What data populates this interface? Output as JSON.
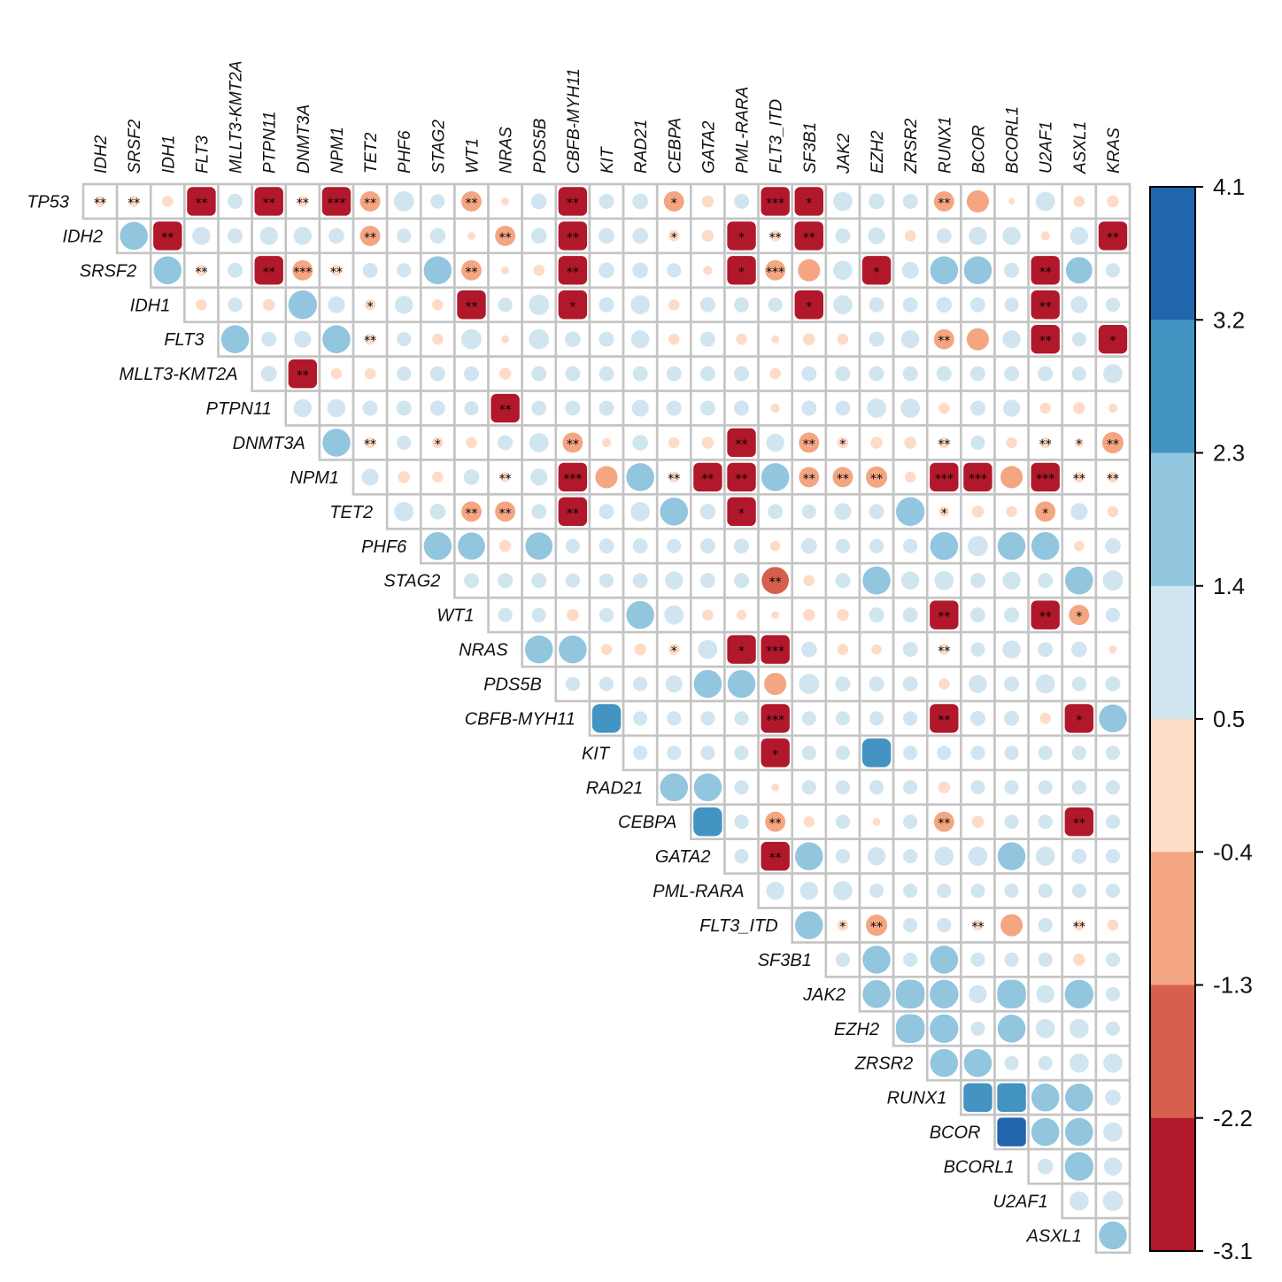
{
  "chart_data": {
    "type": "heatmap",
    "style": "corrplot-upper-circles",
    "grid": true,
    "legend": "right",
    "columns": [
      "IDH2",
      "SRSF2",
      "IDH1",
      "FLT3",
      "MLLT3-KMT2A",
      "PTPN11",
      "DNMT3A",
      "NPM1",
      "TET2",
      "PHF6",
      "STAG2",
      "WT1",
      "NRAS",
      "PDS5B",
      "CBFB-MYH11",
      "KIT",
      "RAD21",
      "CEBPA",
      "GATA2",
      "PML-RARA",
      "FLT3_ITD",
      "SF3B1",
      "JAK2",
      "EZH2",
      "ZRSR2",
      "RUNX1",
      "BCOR",
      "BCORL1",
      "U2AF1",
      "ASXL1",
      "KRAS"
    ],
    "rows": [
      {
        "name": "TP53",
        "values": [
          -0.3,
          -0.3,
          -0.3,
          -2.9,
          0.55,
          -2.9,
          -0.3,
          -2.9,
          -1.0,
          1.0,
          0.5,
          -1.0,
          -0.15,
          0.6,
          -2.9,
          0.55,
          0.6,
          -1.0,
          -0.35,
          0.55,
          -2.9,
          -2.9,
          0.9,
          0.6,
          0.55,
          -1.0,
          -1.2,
          -0.1,
          0.9,
          -0.3,
          -0.35
        ],
        "stars": [
          "**",
          "**",
          "",
          "**",
          "",
          "**",
          "**",
          "***",
          "**",
          "",
          "",
          "**",
          "",
          "",
          "**",
          "",
          "",
          "*",
          "",
          "",
          "***",
          "*",
          "",
          "",
          "",
          "**",
          "",
          "",
          "",
          "",
          ""
        ]
      },
      {
        "name": "IDH2",
        "values": [
          1.9,
          -2.9,
          0.8,
          0.55,
          0.8,
          0.8,
          0.6,
          -1.0,
          0.5,
          0.6,
          -0.15,
          -1.0,
          0.6,
          -2.9,
          0.6,
          0.6,
          -0.3,
          -0.35,
          -2.9,
          -0.3,
          -2.9,
          0.55,
          0.7,
          -0.3,
          0.55,
          0.8,
          0.8,
          -0.2,
          0.8,
          -2.9
        ],
        "stars": [
          "",
          "**",
          "",
          "",
          "",
          "",
          "",
          "**",
          "",
          "",
          "",
          "**",
          "",
          "**",
          "",
          "",
          "*",
          "",
          "*",
          "**",
          "**",
          "",
          "",
          "",
          "",
          "",
          "",
          "",
          "",
          "**"
        ]
      },
      {
        "name": "SRSF2",
        "values": [
          1.9,
          -0.3,
          0.55,
          -2.9,
          -1.0,
          -0.3,
          0.55,
          0.5,
          1.9,
          -1.0,
          -0.15,
          -0.3,
          -2.9,
          0.6,
          0.6,
          0.5,
          -0.2,
          -2.9,
          -1.0,
          -1.2,
          0.9,
          -2.9,
          0.7,
          1.9,
          1.9,
          0.55,
          -2.9,
          1.7,
          0.5
        ],
        "stars": [
          "",
          "**",
          "",
          "**",
          "***",
          "**",
          "",
          "",
          "",
          "**",
          "",
          "",
          "**",
          "",
          "",
          "",
          "",
          "*",
          "***",
          "",
          "",
          "*",
          "",
          "",
          "",
          "",
          "**",
          "",
          ""
        ]
      },
      {
        "name": "IDH1",
        "values": [
          -0.3,
          0.5,
          -0.35,
          2.0,
          0.7,
          -0.3,
          0.8,
          -0.3,
          -2.9,
          0.5,
          1.0,
          -2.9,
          0.55,
          0.9,
          -0.3,
          0.55,
          0.55,
          0.5,
          -2.9,
          0.9,
          0.55,
          0.55,
          0.6,
          0.55,
          0.5,
          -2.9,
          0.7,
          0.5
        ],
        "stars": [
          "",
          "",
          "",
          "",
          "",
          "*",
          "",
          "",
          "**",
          "",
          "",
          "*",
          "",
          "",
          "",
          "",
          "",
          "",
          "*",
          "",
          "",
          "",
          "",
          "",
          "",
          "**",
          "",
          ""
        ]
      },
      {
        "name": "FLT3",
        "values": [
          1.9,
          0.55,
          0.7,
          1.9,
          -0.3,
          0.5,
          -0.3,
          1.0,
          -0.15,
          1.0,
          0.6,
          0.55,
          0.8,
          -0.3,
          0.55,
          -0.3,
          -0.15,
          -0.35,
          -0.3,
          0.55,
          0.8,
          -1.0,
          -1.2,
          0.8,
          -2.9,
          0.5,
          -2.9
        ],
        "stars": [
          "",
          "",
          "",
          "",
          "**",
          "",
          "",
          "",
          "",
          "",
          "",
          "",
          "",
          "",
          "",
          "",
          "",
          "",
          "",
          "",
          "",
          "**",
          "",
          "",
          "**",
          "",
          "*"
        ]
      },
      {
        "name": "MLLT3-KMT2A",
        "values": [
          0.6,
          -2.9,
          -0.3,
          -0.3,
          0.5,
          0.55,
          0.55,
          -0.35,
          0.55,
          0.55,
          0.55,
          0.55,
          0.55,
          0.55,
          0.55,
          -0.3,
          0.55,
          0.55,
          0.55,
          0.55,
          0.55,
          0.55,
          0.55,
          0.55,
          0.5,
          0.9
        ],
        "stars": [
          "",
          "**",
          "",
          "",
          "",
          "",
          "",
          "",
          "",
          "",
          "",
          "",
          "",
          "",
          "",
          "",
          "",
          "",
          "",
          "",
          "",
          "",
          "",
          "",
          "",
          ""
        ]
      },
      {
        "name": "PTPN11",
        "values": [
          0.8,
          0.8,
          0.55,
          0.55,
          0.55,
          0.5,
          -2.9,
          0.55,
          0.55,
          0.55,
          0.7,
          0.55,
          0.55,
          0.55,
          -0.2,
          0.55,
          0.55,
          0.9,
          0.9,
          -0.3,
          0.55,
          0.7,
          -0.3,
          -0.35,
          -0.2
        ],
        "stars": [
          "",
          "",
          "",
          "",
          "",
          "",
          "**",
          "",
          "",
          "",
          "",
          "",
          "",
          "",
          "",
          "",
          "",
          "",
          "",
          "",
          "",
          "",
          "",
          "",
          ""
        ]
      },
      {
        "name": "DNMT3A",
        "values": [
          1.9,
          -0.3,
          0.5,
          -0.3,
          -0.3,
          0.55,
          0.9,
          -1.0,
          -0.2,
          0.6,
          -0.3,
          -0.35,
          -2.9,
          0.8,
          -1.0,
          -0.3,
          -0.35,
          -0.35,
          -0.3,
          0.5,
          -0.3,
          -0.3,
          -0.2,
          -1.1
        ],
        "stars": [
          "",
          "**",
          "",
          "*",
          "",
          "",
          "",
          "**",
          "",
          "",
          "",
          "",
          "**",
          "",
          "**",
          "*",
          "",
          "",
          "**",
          "",
          "",
          "**",
          "*",
          "**"
        ]
      },
      {
        "name": "NPM1",
        "values": [
          0.7,
          -0.35,
          -0.3,
          0.6,
          -0.25,
          0.7,
          -2.9,
          -1.2,
          1.9,
          -0.3,
          -2.9,
          -2.9,
          1.9,
          -1.0,
          -1.0,
          -1.1,
          -0.3,
          -2.9,
          -2.9,
          -1.2,
          -2.9,
          -0.3,
          -0.3
        ],
        "stars": [
          "",
          "",
          "",
          "",
          "**",
          "",
          "***",
          "",
          "",
          "**",
          "**",
          "**",
          "",
          "**",
          "**",
          "**",
          "",
          "***",
          "***",
          "",
          "***",
          "**",
          "**"
        ]
      },
      {
        "name": "TET2",
        "values": [
          0.9,
          0.6,
          -1.0,
          -1.0,
          0.55,
          -2.9,
          0.55,
          0.9,
          1.9,
          0.6,
          -2.9,
          0.55,
          0.5,
          0.7,
          0.55,
          2.0,
          -0.25,
          -0.35,
          -0.3,
          -1.0,
          0.7,
          -0.3
        ],
        "stars": [
          "",
          "",
          "**",
          "**",
          "",
          "**",
          "",
          "",
          "",
          "",
          "*",
          "",
          "",
          "",
          "",
          "",
          "*",
          "",
          "",
          "*",
          "",
          ""
        ]
      },
      {
        "name": "PHF6",
        "values": [
          1.9,
          1.8,
          -0.35,
          1.8,
          0.5,
          0.55,
          0.55,
          0.5,
          0.55,
          0.55,
          -0.25,
          0.6,
          0.5,
          0.5,
          0.5,
          1.9,
          1.0,
          1.9,
          1.9,
          -0.25,
          0.6
        ],
        "stars": [
          "",
          "",
          "",
          "",
          "",
          "",
          "",
          "",
          "",
          "",
          "",
          "",
          "",
          "",
          "",
          "",
          "",
          "",
          "",
          "",
          ""
        ]
      },
      {
        "name": "STAG2",
        "values": [
          0.55,
          0.55,
          0.55,
          0.5,
          0.5,
          0.55,
          0.8,
          0.55,
          0.55,
          -1.8,
          -0.3,
          0.55,
          1.9,
          0.8,
          0.9,
          0.55,
          0.8,
          0.55,
          1.9,
          1.0
        ],
        "stars": [
          "",
          "",
          "",
          "",
          "",
          "",
          "",
          "",
          "",
          "**",
          "",
          "",
          "",
          "",
          "",
          "",
          "",
          "",
          "",
          ""
        ]
      },
      {
        "name": "WT1",
        "values": [
          0.5,
          0.5,
          -0.35,
          0.5,
          1.9,
          0.9,
          -0.3,
          -0.25,
          -0.15,
          -0.35,
          -0.35,
          0.55,
          0.55,
          -2.9,
          0.55,
          0.55,
          -2.9,
          -1.0,
          0.5
        ],
        "stars": [
          "",
          "",
          "",
          "",
          "",
          "",
          "",
          "",
          "",
          "",
          "",
          "",
          "",
          "**",
          "",
          "",
          "**",
          "*",
          ""
        ]
      },
      {
        "name": "NRAS",
        "values": [
          1.9,
          1.9,
          -0.3,
          -0.35,
          -0.3,
          0.9,
          -2.9,
          -2.9,
          0.6,
          -0.3,
          -0.25,
          0.55,
          -0.3,
          0.5,
          0.8,
          0.55,
          0.6,
          -0.15
        ],
        "stars": [
          "",
          "",
          "",
          "",
          "*",
          "",
          "*",
          "***",
          "",
          "",
          "",
          "",
          "**",
          "",
          "",
          "",
          "",
          ""
        ]
      },
      {
        "name": "PDS5B",
        "values": [
          0.5,
          0.5,
          0.5,
          0.7,
          1.9,
          1.9,
          -1.2,
          1.0,
          0.55,
          0.55,
          0.55,
          -0.3,
          0.8,
          0.55,
          0.9,
          0.5,
          0.55
        ],
        "stars": [
          "",
          "",
          "",
          "",
          "",
          "",
          "",
          "",
          "",
          "",
          "",
          "",
          "",
          "",
          "",
          "",
          ""
        ]
      },
      {
        "name": "CBFB-MYH11",
        "values": [
          2.7,
          0.5,
          0.5,
          0.5,
          0.5,
          -2.9,
          0.5,
          0.5,
          0.5,
          0.5,
          -2.9,
          0.55,
          0.55,
          -0.3,
          -2.9,
          1.9
        ],
        "stars": [
          "",
          "",
          "",
          "",
          "",
          "***",
          "",
          "",
          "",
          "",
          "**",
          "",
          "",
          "",
          "*",
          ""
        ]
      },
      {
        "name": "KIT",
        "values": [
          0.5,
          0.5,
          0.5,
          0.5,
          -2.9,
          0.5,
          0.5,
          2.7,
          0.5,
          0.5,
          0.5,
          0.5,
          0.5,
          0.5,
          0.5
        ],
        "stars": [
          "",
          "",
          "",
          "",
          "*",
          "",
          "",
          "",
          "",
          "",
          "",
          "",
          "",
          "",
          ""
        ]
      },
      {
        "name": "RAD21",
        "values": [
          1.9,
          1.9,
          0.5,
          -0.15,
          0.5,
          0.5,
          0.5,
          0.5,
          -0.35,
          0.5,
          0.5,
          0.5,
          0.5,
          0.5
        ],
        "stars": [
          "",
          "",
          "",
          "",
          "",
          "",
          "",
          "",
          "",
          "",
          "",
          "",
          "",
          ""
        ]
      },
      {
        "name": "CEBPA",
        "values": [
          2.7,
          0.5,
          -1.0,
          -0.3,
          0.5,
          -0.15,
          0.5,
          -1.0,
          -0.35,
          0.5,
          0.5,
          -2.9,
          0.5
        ],
        "stars": [
          "",
          "",
          "**",
          "",
          "",
          "",
          "",
          "**",
          "",
          "",
          "",
          "**",
          ""
        ]
      },
      {
        "name": "GATA2",
        "values": [
          0.5,
          -2.9,
          1.9,
          0.5,
          0.8,
          0.5,
          0.9,
          0.9,
          1.9,
          0.9,
          0.55,
          0.5
        ],
        "stars": [
          "",
          "**",
          "",
          "",
          "",
          "",
          "",
          "",
          "",
          "",
          "",
          ""
        ]
      },
      {
        "name": "PML-RARA",
        "values": [
          0.8,
          0.8,
          0.9,
          0.5,
          0.5,
          0.5,
          0.5,
          0.5,
          0.5,
          0.5,
          0.5
        ],
        "stars": [
          "",
          "",
          "",
          "",
          "",
          "",
          "",
          "",
          "",
          "",
          ""
        ]
      },
      {
        "name": "FLT3_ITD",
        "values": [
          1.9,
          -0.3,
          -1.1,
          0.5,
          0.5,
          -0.3,
          -1.2,
          0.5,
          -0.3,
          -0.3
        ],
        "stars": [
          "",
          "*",
          "**",
          "",
          "",
          "**",
          "",
          "",
          "**",
          ""
        ]
      },
      {
        "name": "SF3B1",
        "values": [
          0.5,
          1.9,
          0.5,
          1.9,
          0.5,
          0.5,
          0.5,
          -0.35,
          0.5
        ],
        "stars": [
          "",
          "",
          "",
          "",
          "",
          "",
          "",
          "",
          ""
        ]
      },
      {
        "name": "JAK2",
        "values": [
          1.9,
          2.2,
          2.0,
          0.8,
          2.2,
          0.8,
          2.0,
          0.5
        ],
        "stars": [
          "",
          "",
          "",
          "",
          "",
          "",
          "",
          ""
        ]
      },
      {
        "name": "EZH2",
        "values": [
          2.2,
          2.0,
          0.5,
          1.9,
          0.9,
          0.9,
          0.5
        ],
        "stars": [
          "",
          "",
          "",
          "",
          "",
          "",
          ""
        ]
      },
      {
        "name": "ZRSR2",
        "values": [
          1.9,
          1.9,
          0.5,
          0.5,
          0.9,
          0.9
        ],
        "stars": [
          "",
          "",
          "",
          "",
          "",
          ""
        ]
      },
      {
        "name": "RUNX1",
        "values": [
          2.9,
          3.0,
          1.9,
          1.9,
          0.6
        ],
        "stars": [
          "",
          "",
          "",
          "",
          ""
        ]
      },
      {
        "name": "BCOR",
        "values": [
          3.9,
          1.9,
          1.9,
          0.9
        ],
        "stars": [
          "",
          "",
          "",
          ""
        ]
      },
      {
        "name": "BCORL1",
        "values": [
          0.6,
          2.0,
          0.8
        ],
        "stars": [
          "",
          "",
          ""
        ]
      },
      {
        "name": "U2AF1",
        "values": [
          0.9,
          1.0
        ],
        "stars": [
          "",
          ""
        ]
      },
      {
        "name": "ASXL1",
        "values": [
          1.9
        ],
        "stars": [
          ""
        ]
      }
    ],
    "color_scale": {
      "range": [
        -3.1,
        4.1
      ],
      "breaks": [
        -3.1,
        -2.2,
        -1.3,
        -0.4,
        0.5,
        1.4,
        2.3,
        3.2,
        4.1
      ],
      "tick_labels": [
        "4.1",
        "3.2",
        "2.3",
        "1.4",
        "0.5",
        "-0.4",
        "-1.3",
        "-2.2",
        "-3.1"
      ],
      "colors": [
        "#b2182b",
        "#d6604d",
        "#f4a582",
        "#fddbc7",
        "#d1e5f0",
        "#92c5de",
        "#4393c3",
        "#2166ac"
      ]
    },
    "grid_color": "#c4c4c4"
  }
}
